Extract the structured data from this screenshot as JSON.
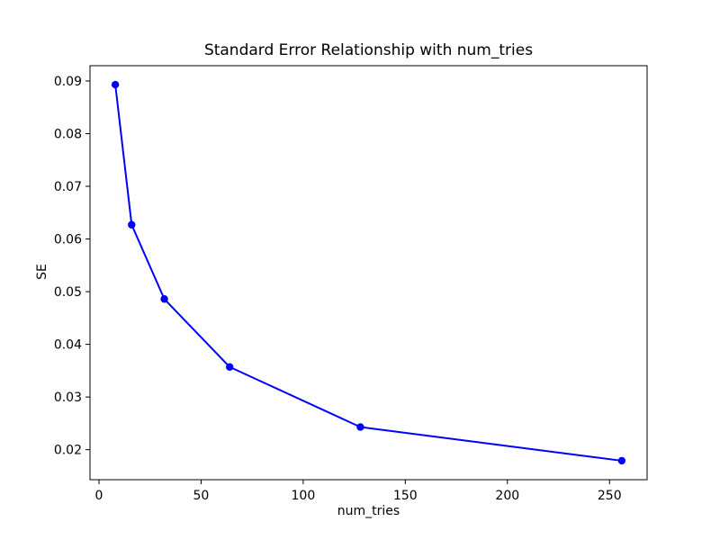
{
  "figure": {
    "background": "#ffffff"
  },
  "chart_data": {
    "type": "line",
    "title": "Standard Error Relationship with num_tries",
    "xlabel": "num_tries",
    "ylabel": "SE",
    "x": [
      8,
      16,
      32,
      64,
      128,
      256
    ],
    "y": [
      0.0893,
      0.0627,
      0.0486,
      0.0357,
      0.0243,
      0.0179
    ],
    "xlim": [
      -4.4,
      268.4
    ],
    "ylim": [
      0.0143,
      0.0929
    ],
    "xticks": [
      0,
      50,
      100,
      150,
      200,
      250
    ],
    "yticks": [
      0.02,
      0.03,
      0.04,
      0.05,
      0.06,
      0.07,
      0.08,
      0.09
    ],
    "ytick_decimals": 2,
    "grid": false,
    "legend": "none",
    "line_color": "#0000ff",
    "marker": "circle",
    "axis_color": "#000000",
    "text_color": "#000000"
  }
}
